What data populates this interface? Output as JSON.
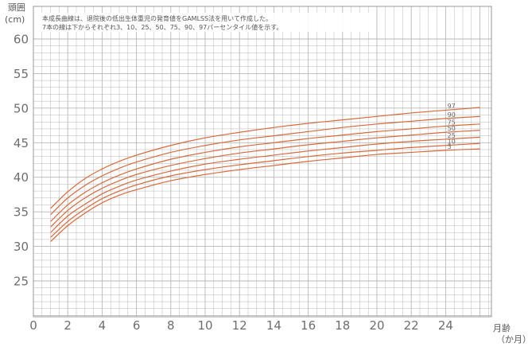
{
  "chart_data": {
    "type": "line",
    "note_lines": [
      "本成長曲線は、退院後の低出生体重児の発育値をGAMLSS法を用いて作成した。",
      "7本の線は下からそれぞれ3、10、25、50、75、90、97パーセンタイル値を示す。"
    ],
    "ylabel_lines": [
      "頭囲",
      "(cm)"
    ],
    "xlabel_lines": [
      "月齢",
      "（か月）"
    ],
    "xlim": [
      0,
      26
    ],
    "ylim": [
      20,
      60
    ],
    "x_ticks": [
      0,
      2,
      4,
      6,
      8,
      10,
      12,
      14,
      16,
      18,
      20,
      22,
      24
    ],
    "y_ticks": [
      25,
      30,
      35,
      40,
      45,
      50,
      55,
      60
    ],
    "x_tick_labels": [
      "0",
      "2",
      "4",
      "6",
      "8",
      "10",
      "12",
      "14",
      "16",
      "18",
      "20",
      "22",
      "24"
    ],
    "y_tick_labels": [
      "25",
      "30",
      "35",
      "40",
      "45",
      "50",
      "55",
      "60"
    ],
    "grid": true,
    "grid_x_step": 0.5,
    "grid_y_step": 1,
    "x": [
      1,
      2,
      3,
      4,
      5,
      6,
      8,
      10,
      12,
      14,
      16,
      18,
      20,
      22,
      24,
      26
    ],
    "series": [
      {
        "name": "3",
        "values": [
          30.7,
          33.0,
          34.8,
          36.3,
          37.4,
          38.2,
          39.5,
          40.4,
          41.1,
          41.7,
          42.3,
          42.8,
          43.3,
          43.6,
          43.9,
          44.1
        ]
      },
      {
        "name": "10",
        "values": [
          31.3,
          33.6,
          35.4,
          36.9,
          38.0,
          38.9,
          40.2,
          41.1,
          41.8,
          42.4,
          43.0,
          43.5,
          43.9,
          44.3,
          44.6,
          44.9
        ]
      },
      {
        "name": "25",
        "values": [
          32.0,
          34.4,
          36.1,
          37.6,
          38.7,
          39.6,
          40.9,
          41.9,
          42.6,
          43.2,
          43.8,
          44.3,
          44.8,
          45.2,
          45.5,
          45.8
        ]
      },
      {
        "name": "50",
        "values": [
          32.8,
          35.2,
          37.0,
          38.4,
          39.5,
          40.4,
          41.7,
          42.7,
          43.5,
          44.1,
          44.7,
          45.2,
          45.7,
          46.1,
          46.5,
          46.8
        ]
      },
      {
        "name": "75",
        "values": [
          33.6,
          36.0,
          37.8,
          39.2,
          40.3,
          41.2,
          42.6,
          43.6,
          44.4,
          45.0,
          45.6,
          46.1,
          46.6,
          47.0,
          47.4,
          47.7
        ]
      },
      {
        "name": "90",
        "values": [
          34.6,
          37.0,
          38.8,
          40.2,
          41.3,
          42.2,
          43.6,
          44.6,
          45.4,
          46.0,
          46.6,
          47.2,
          47.7,
          48.1,
          48.5,
          48.8
        ]
      },
      {
        "name": "97",
        "values": [
          35.5,
          37.9,
          39.8,
          41.2,
          42.3,
          43.2,
          44.6,
          45.7,
          46.5,
          47.2,
          47.8,
          48.3,
          48.8,
          49.3,
          49.7,
          50.1
        ]
      }
    ],
    "colors": {
      "curve": "#d9693a",
      "grid": "#b7b7b7",
      "axis_text": "#6e6e6e"
    }
  }
}
